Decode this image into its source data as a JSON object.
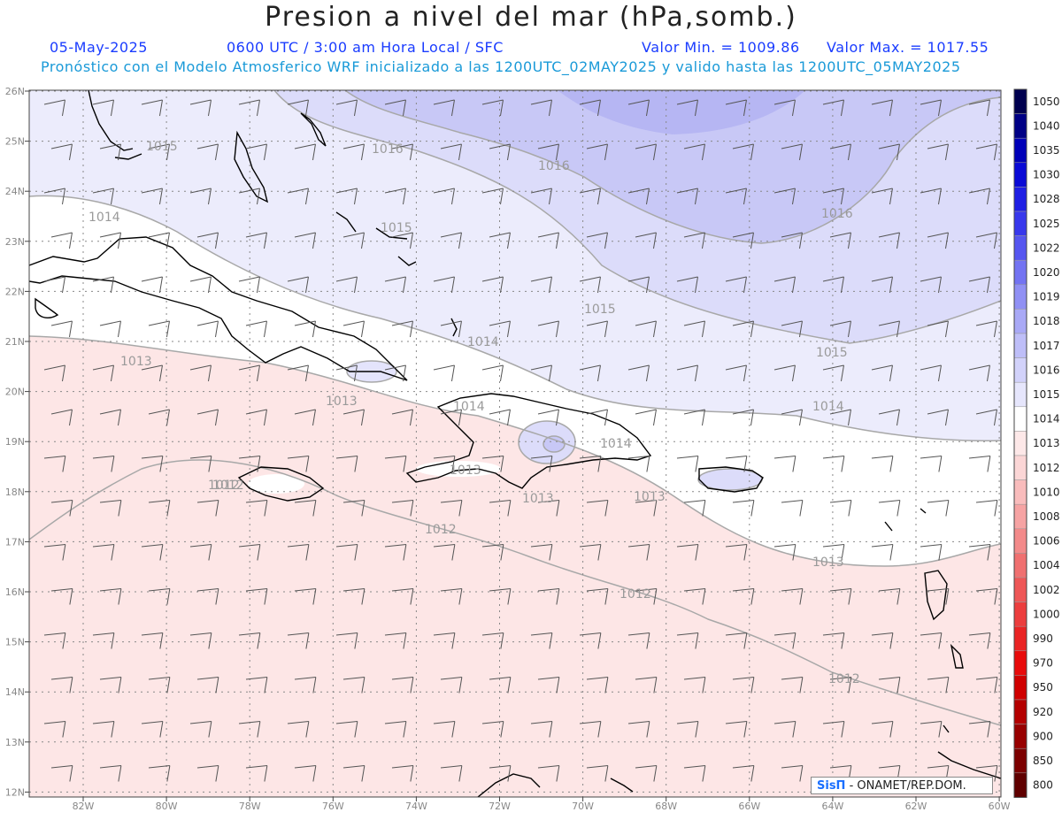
{
  "header": {
    "title": "Presion a nivel del mar (hPa,somb.)",
    "date": "05-May-2025",
    "time_info": "0600 UTC / 3:00 am Hora Local / SFC",
    "min_value": "Valor Min. = 1009.86",
    "max_value": "Valor Max. = 1017.55",
    "model_info": "Pronóstico con el Modelo Atmosferico WRF inicializado a las 1200UTC_02MAY2025 y valido hasta las  1200UTC_05MAY2025"
  },
  "map": {
    "lon_labels": [
      "82W",
      "80W",
      "78W",
      "76W",
      "74W",
      "72W",
      "70W",
      "68W",
      "66W",
      "64W",
      "62W",
      "60W"
    ],
    "lat_labels": [
      "26N",
      "25N",
      "24N",
      "23N",
      "22N",
      "21N",
      "20N",
      "19N",
      "18N",
      "17N",
      "16N",
      "15N",
      "14N",
      "13N",
      "12N"
    ],
    "contour_labels": [
      "1015",
      "1016",
      "1016",
      "1016",
      "1014",
      "1015",
      "1015",
      "1014",
      "1015",
      "1013",
      "1013",
      "1014",
      "1014",
      "1014",
      "1013",
      "1013",
      "1012",
      "1013",
      "1012",
      "1012",
      "1012",
      "1013",
      "1012"
    ]
  },
  "colorbar": {
    "levels": [
      "1050",
      "1040",
      "1035",
      "1030",
      "1028",
      "1025",
      "1022",
      "1020",
      "1019",
      "1018",
      "1017",
      "1016",
      "1015",
      "1014",
      "1013",
      "1012",
      "1010",
      "1008",
      "1006",
      "1004",
      "1002",
      "1000",
      "990",
      "970",
      "950",
      "920",
      "900",
      "850",
      "800"
    ],
    "colors": [
      "#00004f",
      "#000085",
      "#0000b8",
      "#0a0ad6",
      "#1f1fe4",
      "#3838ec",
      "#5656f0",
      "#7373f2",
      "#9090f4",
      "#a9a9f6",
      "#bebef8",
      "#d2d2fa",
      "#e6e6fc",
      "#ffffff",
      "#fde8e8",
      "#fbd6d6",
      "#f9bcbc",
      "#f6a3a3",
      "#f38a8a",
      "#f07070",
      "#ee5757",
      "#ec3e3e",
      "#ea2424",
      "#e80b0b",
      "#d00000",
      "#b40000",
      "#980000",
      "#7c0000",
      "#600000"
    ]
  },
  "credit": {
    "brand": "SisΠ",
    "text": " - ONAMET/REP.DOM."
  }
}
